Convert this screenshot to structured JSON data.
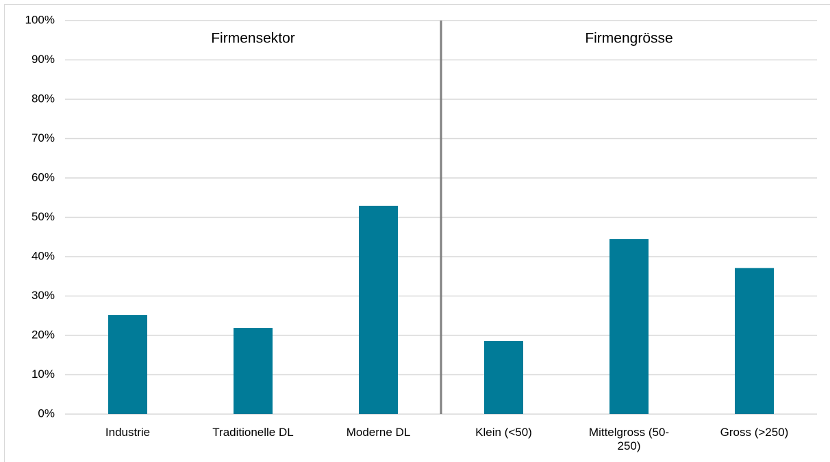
{
  "chart_data": {
    "type": "bar",
    "categories": [
      "Industrie",
      "Traditionelle DL",
      "Moderne DL",
      "Klein (<50)",
      "Mittelgross (50-250)",
      "Gross (>250)"
    ],
    "values": [
      25.2,
      21.9,
      52.9,
      18.6,
      44.5,
      37.1
    ],
    "color": "#017b98",
    "annotations": [
      "Firmensektor",
      "Firmengrösse"
    ],
    "ylim": [
      0,
      100
    ],
    "yticks": [
      {
        "value": 0,
        "label": "0%"
      },
      {
        "value": 10,
        "label": "10%"
      },
      {
        "value": 20,
        "label": "20%"
      },
      {
        "value": 30,
        "label": "30%"
      },
      {
        "value": 40,
        "label": "40%"
      },
      {
        "value": 50,
        "label": "50%"
      },
      {
        "value": 60,
        "label": "60%"
      },
      {
        "value": 70,
        "label": "70%"
      },
      {
        "value": 80,
        "label": "80%"
      },
      {
        "value": 90,
        "label": "90%"
      },
      {
        "value": 100,
        "label": "100%"
      }
    ],
    "grid": true
  }
}
